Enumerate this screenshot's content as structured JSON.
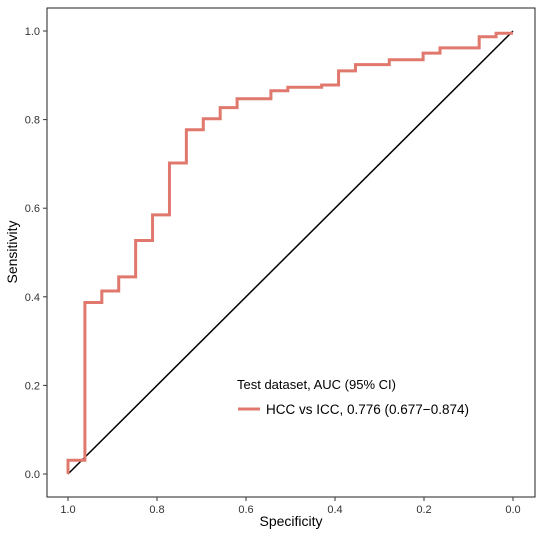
{
  "chart_data": {
    "type": "line",
    "title": "",
    "xlabel": "Specificity",
    "ylabel": "Sensitivity",
    "x_reversed": true,
    "xlim": [
      1.0,
      0.0
    ],
    "ylim": [
      0.0,
      1.0
    ],
    "x_ticks": [
      "1.0",
      "0.8",
      "0.6",
      "0.4",
      "0.2",
      "0.0"
    ],
    "y_ticks": [
      "0.0",
      "0.2",
      "0.4",
      "0.6",
      "0.8",
      "1.0"
    ],
    "grid": false,
    "legend": {
      "title": "Test dataset, AUC (95% CI)",
      "placement": "bottom-right"
    },
    "reference_line": {
      "x": [
        1.0,
        0.0
      ],
      "y": [
        0.0,
        1.0
      ],
      "color": "#000000"
    },
    "series": [
      {
        "name": "HCC vs ICC, 0.776 (0.677−0.874)",
        "color": "#E0786E",
        "step": true,
        "x": [
          1.0,
          1.0,
          0.962,
          0.962,
          0.924,
          0.924,
          0.886,
          0.886,
          0.848,
          0.848,
          0.81,
          0.81,
          0.772,
          0.772,
          0.734,
          0.734,
          0.696,
          0.696,
          0.658,
          0.658,
          0.62,
          0.62,
          0.544,
          0.544,
          0.506,
          0.506,
          0.43,
          0.43,
          0.392,
          0.392,
          0.354,
          0.354,
          0.278,
          0.278,
          0.202,
          0.202,
          0.164,
          0.164,
          0.076,
          0.076,
          0.038,
          0.038,
          0.0
        ],
        "y": [
          0.0,
          0.031,
          0.031,
          0.387,
          0.387,
          0.413,
          0.413,
          0.445,
          0.445,
          0.527,
          0.527,
          0.585,
          0.585,
          0.702,
          0.702,
          0.777,
          0.777,
          0.802,
          0.802,
          0.827,
          0.827,
          0.847,
          0.847,
          0.865,
          0.865,
          0.873,
          0.873,
          0.878,
          0.878,
          0.91,
          0.91,
          0.924,
          0.924,
          0.935,
          0.935,
          0.95,
          0.95,
          0.962,
          0.962,
          0.987,
          0.987,
          0.995,
          0.995
        ]
      }
    ]
  }
}
